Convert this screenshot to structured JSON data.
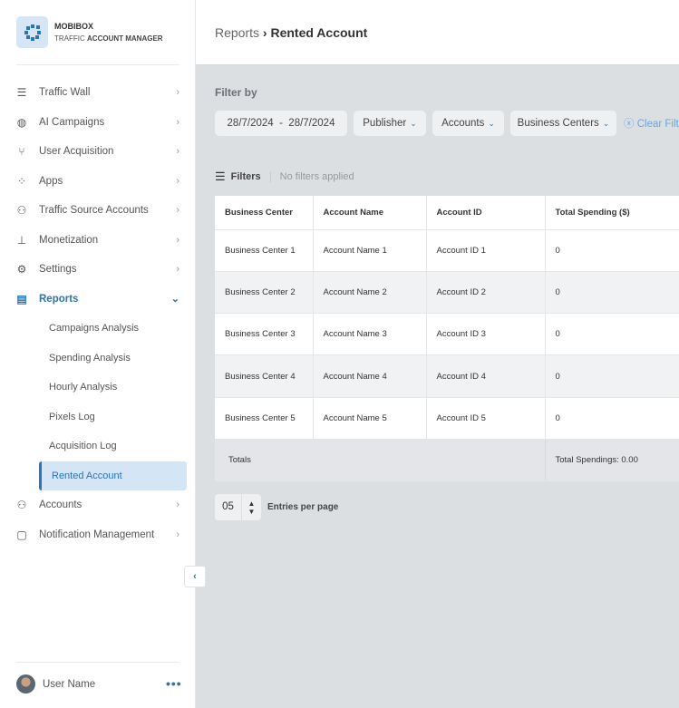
{
  "brand": {
    "name": "MOBIBOX",
    "subtitle_light": "TRAFFIC",
    "subtitle_bold": "ACCOUNT MANAGER"
  },
  "nav": [
    {
      "label": "Traffic Wall",
      "icon": "list-icon"
    },
    {
      "label": "AI Campaigns",
      "icon": "globe-icon"
    },
    {
      "label": "User Acquisition",
      "icon": "branch-icon"
    },
    {
      "label": "Apps",
      "icon": "apps-icon"
    },
    {
      "label": "Traffic Source Accounts",
      "icon": "users-icon"
    },
    {
      "label": "Monetization",
      "icon": "hierarchy-icon"
    },
    {
      "label": "Settings",
      "icon": "gear-icon"
    },
    {
      "label": "Reports",
      "icon": "clipboard-icon"
    }
  ],
  "reports_sub": [
    "Campaigns Analysis",
    "Spending Analysis",
    "Hourly Analysis",
    "Pixels Log",
    "Acquisition Log",
    "Rented Account"
  ],
  "nav_after": [
    {
      "label": "Accounts",
      "icon": "accounts-icon"
    },
    {
      "label": "Notification Management",
      "icon": "notification-icon"
    }
  ],
  "user": {
    "name": "User Name"
  },
  "breadcrumb": {
    "parent": "Reports",
    "current": "Rented Account"
  },
  "filter": {
    "title": "Filter by",
    "date_range": "28/7/2024  -  28/7/2024",
    "publisher": "Publisher",
    "accounts": "Accounts",
    "business_centers": "Business Centers",
    "clear": "Clear Filters",
    "filters_label": "Filters",
    "no_filters": "No filters applied"
  },
  "table": {
    "headers": [
      "Business Center",
      "Account Name",
      "Account ID",
      "Total Spending ($)"
    ],
    "rows": [
      [
        "Business Center 1",
        "Account Name 1",
        "Account ID 1",
        "0"
      ],
      [
        "Business Center 2",
        "Account Name 2",
        "Account ID 2",
        "0"
      ],
      [
        "Business Center 3",
        "Account Name 3",
        "Account ID 3",
        "0"
      ],
      [
        "Business Center 4",
        "Account Name 4",
        "Account ID 4",
        "0"
      ],
      [
        "Business Center 5",
        "Account Name 5",
        "Account ID 5",
        "0"
      ]
    ],
    "totals_label": "Totals",
    "totals_value": "Total Spendings: 0.00"
  },
  "pager": {
    "value": "05",
    "label": "Entries per page"
  },
  "colors": {
    "accent": "#2a74b8",
    "selected_bg": "#d4e5f5",
    "content_bg": "#dcdfe2"
  }
}
